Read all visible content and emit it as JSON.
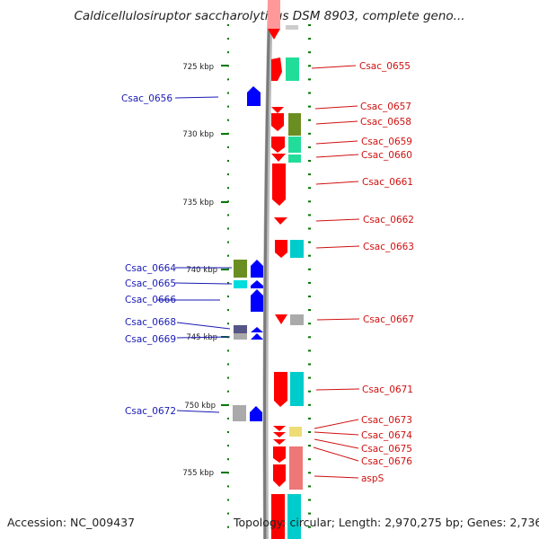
{
  "title": "Caldicellulosiruptor saccharolyticus DSM 8903, complete geno...",
  "footer": {
    "accession": "Accession: NC_009437",
    "topology": "Topology: circular; Length: 2,970,275 bp; Genes: 2,736"
  },
  "axis_labels": [
    "725 kbp",
    "730 kbp",
    "735 kbp",
    "740 kbp",
    "745 kbp",
    "750 kbp",
    "755 kbp"
  ],
  "colors": {
    "forward_gene": "#ff0000",
    "reverse_gene": "#0000ff",
    "backbone": "#888888",
    "tick": "#007700",
    "left_label": "#1a1ab4",
    "right_label": "#d01010"
  },
  "genes_left": [
    {
      "name": "Csac_0656"
    },
    {
      "name": "Csac_0664"
    },
    {
      "name": "Csac_0665"
    },
    {
      "name": "Csac_0666"
    },
    {
      "name": "Csac_0668"
    },
    {
      "name": "Csac_0669"
    },
    {
      "name": "Csac_0672"
    }
  ],
  "genes_right": [
    {
      "name": "Csac_0655"
    },
    {
      "name": "Csac_0657"
    },
    {
      "name": "Csac_0658"
    },
    {
      "name": "Csac_0659"
    },
    {
      "name": "Csac_0660"
    },
    {
      "name": "Csac_0661"
    },
    {
      "name": "Csac_0662"
    },
    {
      "name": "Csac_0663"
    },
    {
      "name": "Csac_0667"
    },
    {
      "name": "Csac_0671"
    },
    {
      "name": "Csac_0673"
    },
    {
      "name": "Csac_0674"
    },
    {
      "name": "Csac_0675"
    },
    {
      "name": "Csac_0676"
    },
    {
      "name": "aspS"
    }
  ]
}
